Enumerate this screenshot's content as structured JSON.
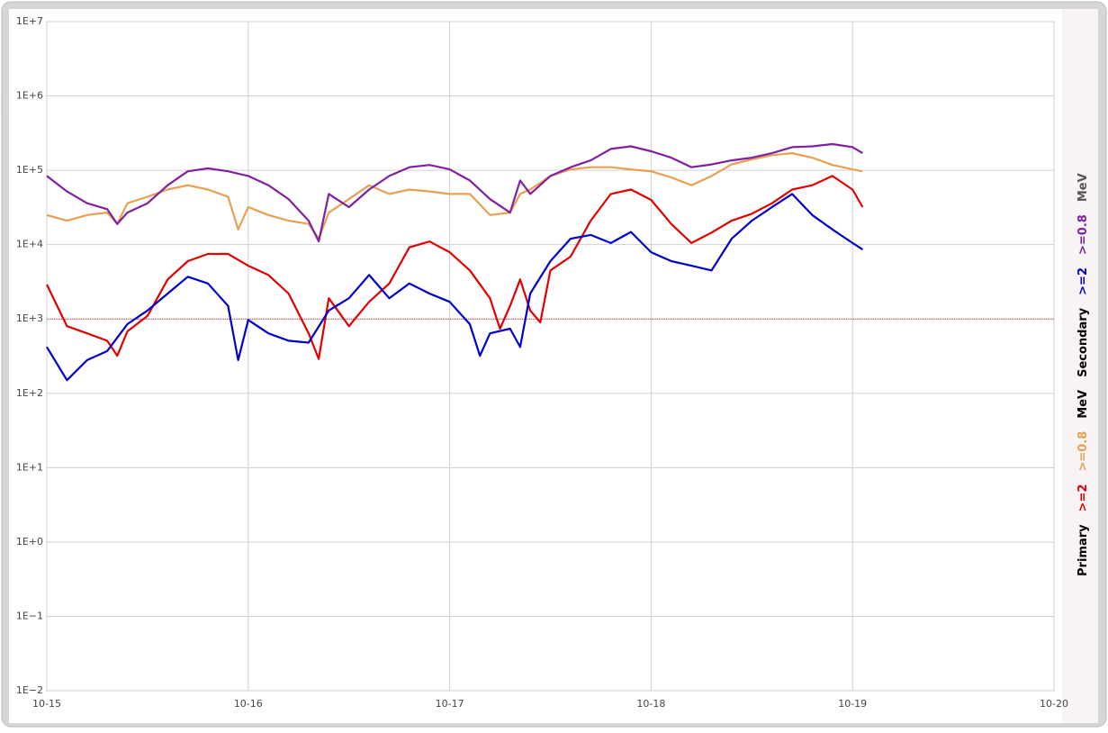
{
  "chart_data": {
    "type": "line",
    "log_y": true,
    "grid": true,
    "xlim": [
      15,
      20
    ],
    "ylim": [
      0.01,
      10000000
    ],
    "xticks": [
      {
        "value": 15,
        "label": "10-15"
      },
      {
        "value": 16,
        "label": "10-16"
      },
      {
        "value": 17,
        "label": "10-17"
      },
      {
        "value": 18,
        "label": "10-18"
      },
      {
        "value": 19,
        "label": "10-19"
      },
      {
        "value": 20,
        "label": "10-20"
      }
    ],
    "yticks": [
      {
        "value": 0.01,
        "label": "1E−2"
      },
      {
        "value": 0.1,
        "label": "1E−1"
      },
      {
        "value": 1,
        "label": "1E+0"
      },
      {
        "value": 10,
        "label": "1E+1"
      },
      {
        "value": 100,
        "label": "1E+2"
      },
      {
        "value": 1000,
        "label": "1E+3"
      },
      {
        "value": 10000,
        "label": "1E+4"
      },
      {
        "value": 100000,
        "label": "1E+5"
      },
      {
        "value": 1000000,
        "label": "1E+6"
      },
      {
        "value": 10000000,
        "label": "1E+7"
      }
    ],
    "threshold": {
      "value": 1000,
      "color": "#d04040"
    },
    "legend": [
      {
        "title": "Primary",
        "unit": "MeV",
        "color": "#000000"
      },
      {
        "title": "Secondary",
        "unit": "MeV",
        "color": "#000000"
      }
    ],
    "legend_position": "right",
    "series": [
      {
        "name": ">=2",
        "color": "#e00000",
        "x": [
          15.0,
          15.1,
          15.2,
          15.3,
          15.35,
          15.4,
          15.5,
          15.6,
          15.7,
          15.8,
          15.9,
          16.0,
          16.1,
          16.2,
          16.3,
          16.35,
          16.4,
          16.5,
          16.6,
          16.7,
          16.8,
          16.9,
          17.0,
          17.1,
          17.2,
          17.25,
          17.3,
          17.35,
          17.4,
          17.45,
          17.5,
          17.6,
          17.7,
          17.8,
          17.9,
          18.0,
          18.1,
          18.2,
          18.3,
          18.4,
          18.5,
          18.6,
          18.7,
          18.8,
          18.9,
          19.0,
          19.05
        ],
        "values": [
          2900,
          800,
          640,
          510,
          320,
          680,
          1100,
          3400,
          6000,
          7500,
          7500,
          5200,
          3900,
          2200,
          640,
          290,
          1900,
          800,
          1700,
          3000,
          9200,
          11000,
          7900,
          4500,
          1900,
          740,
          1500,
          3400,
          1300,
          900,
          4500,
          6900,
          21000,
          48000,
          55000,
          40000,
          19000,
          10500,
          14500,
          21000,
          26000,
          36000,
          55000,
          63000,
          84000,
          55000,
          32000
        ]
      },
      {
        "name": ">=0.8",
        "color": "#e8a050",
        "x": [
          15.0,
          15.1,
          15.2,
          15.3,
          15.35,
          15.4,
          15.5,
          15.6,
          15.7,
          15.8,
          15.9,
          15.95,
          16.0,
          16.1,
          16.2,
          16.3,
          16.35,
          16.4,
          16.5,
          16.6,
          16.7,
          16.8,
          16.9,
          17.0,
          17.1,
          17.2,
          17.3,
          17.35,
          17.4,
          17.5,
          17.6,
          17.7,
          17.8,
          17.9,
          18.0,
          18.1,
          18.2,
          18.3,
          18.4,
          18.5,
          18.6,
          18.7,
          18.8,
          18.9,
          19.0,
          19.05
        ],
        "values": [
          25000,
          21000,
          25000,
          27000,
          19000,
          36000,
          44000,
          55000,
          63000,
          55000,
          44000,
          16000,
          32000,
          25000,
          21000,
          19000,
          12000,
          27000,
          41000,
          63000,
          48000,
          55000,
          52000,
          48000,
          48000,
          25000,
          27000,
          48000,
          55000,
          84000,
          103000,
          110000,
          110000,
          103000,
          97000,
          80000,
          63000,
          84000,
          120000,
          140000,
          160000,
          170000,
          148000,
          118000,
          103000,
          97000
        ]
      },
      {
        "name": ">=2",
        "color": "#0000cc",
        "x": [
          15.0,
          15.1,
          15.2,
          15.3,
          15.4,
          15.5,
          15.6,
          15.7,
          15.8,
          15.9,
          15.95,
          16.0,
          16.1,
          16.2,
          16.3,
          16.4,
          16.5,
          16.6,
          16.7,
          16.8,
          16.9,
          17.0,
          17.1,
          17.15,
          17.2,
          17.3,
          17.35,
          17.4,
          17.5,
          17.6,
          17.7,
          17.8,
          17.9,
          18.0,
          18.1,
          18.2,
          18.3,
          18.4,
          18.5,
          18.6,
          18.7,
          18.8,
          18.9,
          19.0,
          19.05
        ],
        "values": [
          420,
          150,
          280,
          370,
          850,
          1300,
          2200,
          3700,
          3000,
          1500,
          280,
          970,
          640,
          510,
          480,
          1300,
          1900,
          3900,
          1900,
          3000,
          2200,
          1700,
          850,
          320,
          640,
          740,
          420,
          2200,
          6000,
          12000,
          13500,
          10500,
          14800,
          7900,
          6000,
          5200,
          4500,
          12000,
          21000,
          32000,
          48000,
          25000,
          16000,
          10500,
          8600
        ]
      },
      {
        "name": ">=0.8",
        "color": "#8020a0",
        "x": [
          15.0,
          15.1,
          15.2,
          15.3,
          15.35,
          15.4,
          15.5,
          15.6,
          15.7,
          15.8,
          15.9,
          16.0,
          16.1,
          16.2,
          16.3,
          16.35,
          16.4,
          16.5,
          16.6,
          16.7,
          16.8,
          16.9,
          17.0,
          17.1,
          17.2,
          17.3,
          17.35,
          17.4,
          17.5,
          17.6,
          17.7,
          17.8,
          17.9,
          18.0,
          18.1,
          18.2,
          18.3,
          18.4,
          18.5,
          18.6,
          18.7,
          18.8,
          18.9,
          19.0,
          19.05
        ],
        "values": [
          84000,
          52000,
          36000,
          30000,
          19000,
          27000,
          36000,
          63000,
          97000,
          106000,
          97000,
          84000,
          63000,
          41000,
          21000,
          11000,
          48000,
          32000,
          55000,
          84000,
          110000,
          118000,
          103000,
          73000,
          41000,
          27000,
          73000,
          48000,
          84000,
          110000,
          136000,
          194000,
          210000,
          180000,
          148000,
          110000,
          120000,
          136000,
          148000,
          170000,
          205000,
          210000,
          225000,
          205000,
          170000
        ]
      }
    ]
  }
}
